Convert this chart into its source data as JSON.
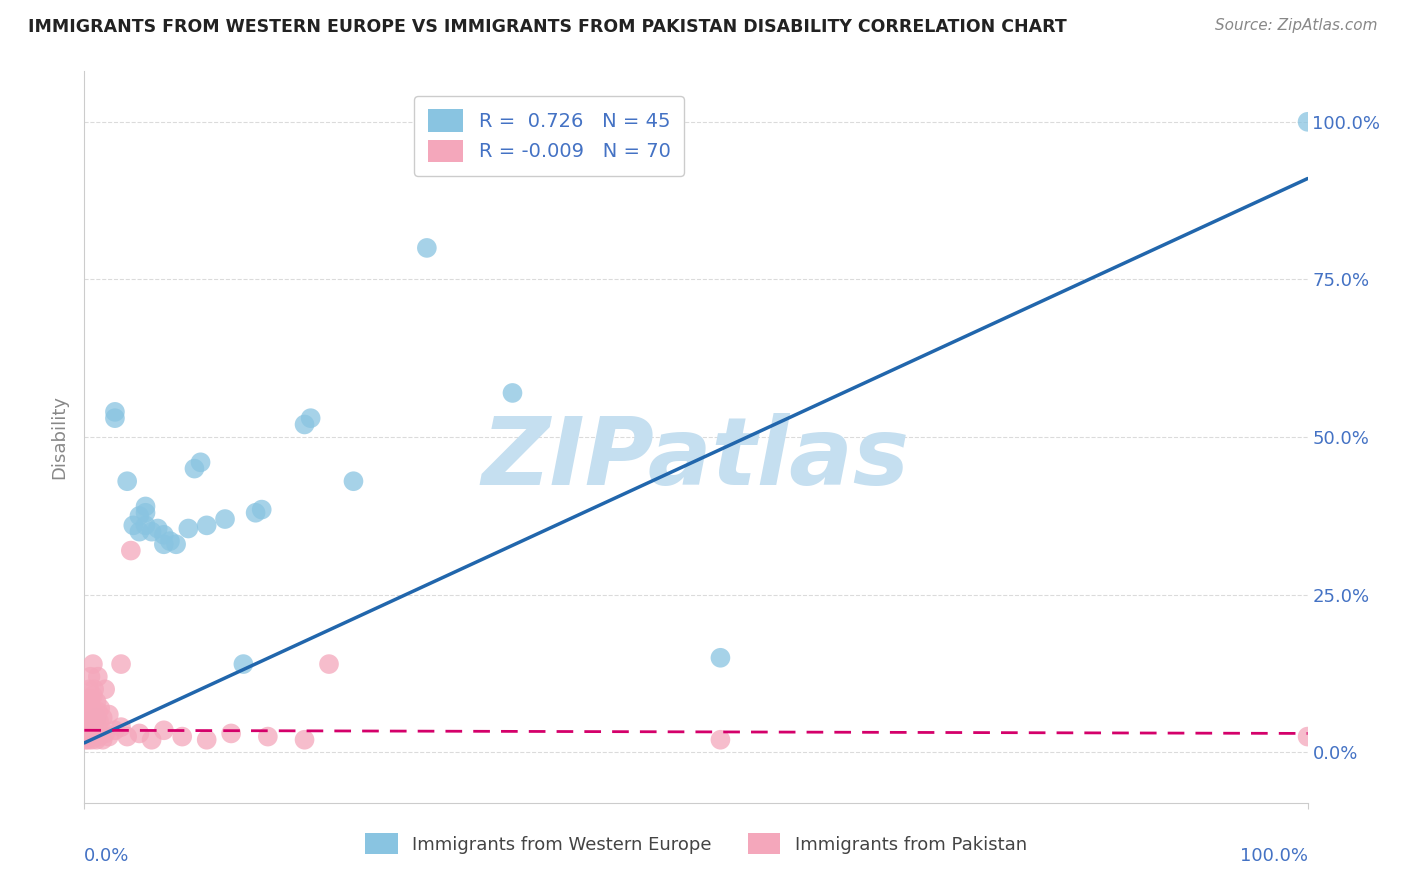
{
  "title": "IMMIGRANTS FROM WESTERN EUROPE VS IMMIGRANTS FROM PAKISTAN DISABILITY CORRELATION CHART",
  "source": "Source: ZipAtlas.com",
  "ylabel": "Disability",
  "r_blue": 0.726,
  "n_blue": 45,
  "r_pink": -0.009,
  "n_pink": 70,
  "legend_label_blue": "Immigrants from Western Europe",
  "legend_label_pink": "Immigrants from Pakistan",
  "blue_scatter": [
    [
      0.5,
      5.0
    ],
    [
      1.0,
      5.5
    ],
    [
      2.5,
      53.0
    ],
    [
      2.5,
      54.0
    ],
    [
      3.5,
      43.0
    ],
    [
      4.0,
      36.0
    ],
    [
      4.5,
      35.0
    ],
    [
      4.5,
      37.5
    ],
    [
      5.0,
      36.0
    ],
    [
      5.0,
      38.0
    ],
    [
      5.0,
      39.0
    ],
    [
      5.5,
      35.0
    ],
    [
      6.0,
      35.5
    ],
    [
      6.5,
      33.0
    ],
    [
      6.5,
      34.5
    ],
    [
      7.0,
      33.5
    ],
    [
      7.5,
      33.0
    ],
    [
      8.5,
      35.5
    ],
    [
      9.0,
      45.0
    ],
    [
      9.5,
      46.0
    ],
    [
      10.0,
      36.0
    ],
    [
      11.5,
      37.0
    ],
    [
      13.0,
      14.0
    ],
    [
      14.0,
      38.0
    ],
    [
      14.5,
      38.5
    ],
    [
      18.0,
      52.0
    ],
    [
      18.5,
      53.0
    ],
    [
      22.0,
      43.0
    ],
    [
      28.0,
      80.0
    ],
    [
      35.0,
      57.0
    ],
    [
      52.0,
      15.0
    ],
    [
      100.0,
      100.0
    ]
  ],
  "pink_scatter": [
    [
      0.1,
      2.0
    ],
    [
      0.15,
      3.5
    ],
    [
      0.2,
      2.5
    ],
    [
      0.2,
      5.0
    ],
    [
      0.3,
      2.0
    ],
    [
      0.3,
      4.0
    ],
    [
      0.3,
      6.5
    ],
    [
      0.3,
      8.0
    ],
    [
      0.4,
      2.5
    ],
    [
      0.4,
      5.0
    ],
    [
      0.4,
      7.0
    ],
    [
      0.4,
      10.0
    ],
    [
      0.5,
      3.0
    ],
    [
      0.5,
      6.0
    ],
    [
      0.5,
      8.5
    ],
    [
      0.5,
      12.0
    ],
    [
      0.6,
      2.0
    ],
    [
      0.6,
      4.5
    ],
    [
      0.6,
      7.0
    ],
    [
      0.7,
      3.0
    ],
    [
      0.7,
      5.5
    ],
    [
      0.7,
      9.0
    ],
    [
      0.7,
      14.0
    ],
    [
      0.8,
      2.5
    ],
    [
      0.8,
      5.0
    ],
    [
      0.8,
      10.0
    ],
    [
      0.9,
      3.5
    ],
    [
      0.9,
      6.0
    ],
    [
      1.0,
      2.0
    ],
    [
      1.0,
      4.5
    ],
    [
      1.0,
      8.0
    ],
    [
      1.1,
      3.0
    ],
    [
      1.1,
      6.5
    ],
    [
      1.1,
      12.0
    ],
    [
      1.2,
      2.5
    ],
    [
      1.2,
      5.0
    ],
    [
      1.3,
      3.0
    ],
    [
      1.3,
      7.0
    ],
    [
      1.5,
      2.0
    ],
    [
      1.5,
      5.5
    ],
    [
      1.7,
      3.0
    ],
    [
      1.7,
      10.0
    ],
    [
      2.0,
      2.5
    ],
    [
      2.0,
      6.0
    ],
    [
      2.5,
      3.5
    ],
    [
      3.0,
      4.0
    ],
    [
      3.0,
      14.0
    ],
    [
      3.5,
      2.5
    ],
    [
      3.8,
      32.0
    ],
    [
      4.5,
      3.0
    ],
    [
      5.5,
      2.0
    ],
    [
      6.5,
      3.5
    ],
    [
      8.0,
      2.5
    ],
    [
      10.0,
      2.0
    ],
    [
      12.0,
      3.0
    ],
    [
      15.0,
      2.5
    ],
    [
      18.0,
      2.0
    ],
    [
      20.0,
      14.0
    ],
    [
      52.0,
      2.0
    ],
    [
      100.0,
      2.5
    ]
  ],
  "blue_line": [
    [
      0,
      1.5
    ],
    [
      100,
      91.0
    ]
  ],
  "pink_line": [
    [
      0,
      3.5
    ],
    [
      100,
      3.0
    ]
  ],
  "blue_color": "#89c4e1",
  "pink_color": "#f4a7bb",
  "blue_line_color": "#2166ac",
  "pink_line_color": "#d4006a",
  "watermark_text": "ZIPatlas",
  "watermark_color": "#c5dff0",
  "background_color": "#ffffff",
  "grid_color": "#cccccc",
  "tick_color": "#4472c4",
  "axis_label_color": "#888888",
  "title_color": "#222222",
  "source_color": "#888888",
  "yticks": [
    0,
    25,
    50,
    75,
    100
  ],
  "ytick_labels": [
    "0.0%",
    "25.0%",
    "50.0%",
    "75.0%",
    "100.0%"
  ],
  "xlim": [
    0,
    100
  ],
  "ylim": [
    -8,
    108
  ]
}
